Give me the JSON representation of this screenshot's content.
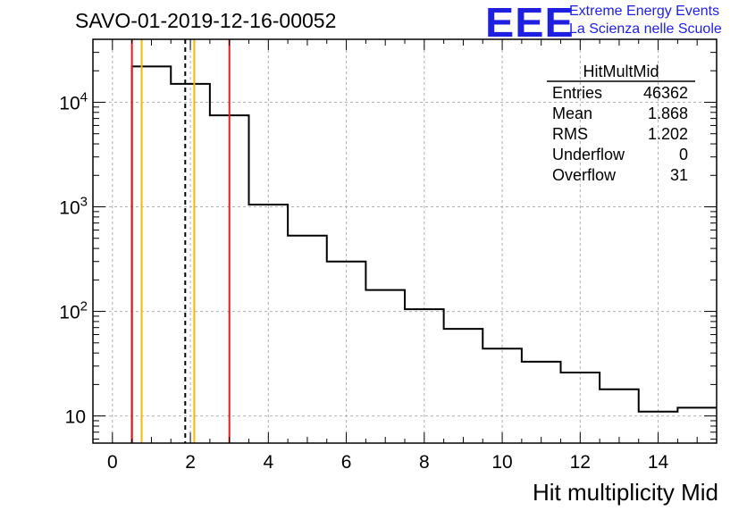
{
  "chart_data": {
    "type": "histogram",
    "title": "SAVO-01-2019-12-16-00052",
    "xlabel": "Hit multiplicity Mid",
    "ylabel": "",
    "yscale": "log",
    "xlim": [
      -0.5,
      15.5
    ],
    "ylim": [
      5.5,
      40000
    ],
    "bin_width": 1,
    "bins": [
      {
        "x": 1,
        "value": 22000
      },
      {
        "x": 2,
        "value": 15000
      },
      {
        "x": 3,
        "value": 7500
      },
      {
        "x": 4,
        "value": 1050
      },
      {
        "x": 5,
        "value": 530
      },
      {
        "x": 6,
        "value": 300
      },
      {
        "x": 7,
        "value": 160
      },
      {
        "x": 8,
        "value": 105
      },
      {
        "x": 9,
        "value": 68
      },
      {
        "x": 10,
        "value": 44
      },
      {
        "x": 11,
        "value": 33
      },
      {
        "x": 12,
        "value": 26
      },
      {
        "x": 13,
        "value": 18
      },
      {
        "x": 14,
        "value": 11
      },
      {
        "x": 15,
        "value": 12
      }
    ],
    "x_ticks": [
      "0",
      "2",
      "4",
      "6",
      "8",
      "10",
      "12",
      "14"
    ],
    "x_tick_values": [
      0,
      2,
      4,
      6,
      8,
      10,
      12,
      14
    ],
    "y_ticks": [
      {
        "value": 10,
        "base": "10",
        "exp": ""
      },
      {
        "value": 100,
        "base": "10",
        "exp": "2"
      },
      {
        "value": 1000,
        "base": "10",
        "exp": "3"
      },
      {
        "value": 10000,
        "base": "10",
        "exp": "4"
      }
    ],
    "vertical_lines": [
      {
        "x": 0.5,
        "color": "#e41a1c",
        "style": "solid"
      },
      {
        "x": 0.75,
        "color": "#f5b800",
        "style": "solid"
      },
      {
        "x": 1.868,
        "color": "#000000",
        "style": "dashed"
      },
      {
        "x": 2.1,
        "color": "#f5b800",
        "style": "solid"
      },
      {
        "x": 3.0,
        "color": "#e41a1c",
        "style": "solid"
      }
    ],
    "grid": true,
    "stats": {
      "name": "HitMultMid",
      "rows": [
        {
          "label": "Entries",
          "value": "46362"
        },
        {
          "label": "Mean",
          "value": "1.868"
        },
        {
          "label": "RMS",
          "value": "1.202"
        },
        {
          "label": "Underflow",
          "value": "0"
        },
        {
          "label": "Overflow",
          "value": "31"
        }
      ]
    }
  },
  "header": {
    "logo_text": "EEE",
    "tagline_1": "Extreme Energy Events",
    "tagline_2": "La Scienza nelle Scuole"
  },
  "colors": {
    "red_line": "#e41a1c",
    "yellow_line": "#f5b800",
    "brand_blue": "#1f1fe0"
  }
}
